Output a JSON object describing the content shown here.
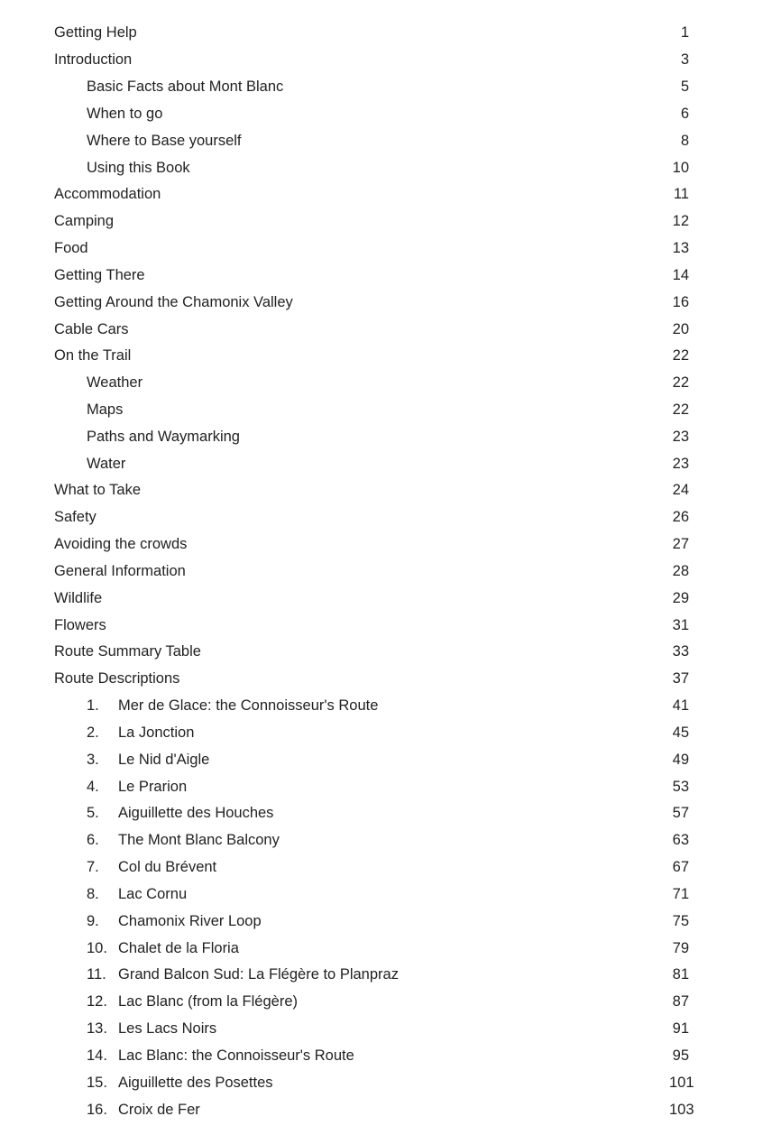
{
  "toc": [
    {
      "title": "Getting Help",
      "page": "1",
      "level": 0
    },
    {
      "title": "Introduction",
      "page": "3",
      "level": 0
    },
    {
      "title": "Basic Facts about Mont Blanc",
      "page": "5",
      "level": 1
    },
    {
      "title": "When to go",
      "page": "6",
      "level": 1
    },
    {
      "title": "Where to Base yourself",
      "page": "8",
      "level": 1
    },
    {
      "title": "Using this Book",
      "page": "10",
      "level": 1
    },
    {
      "title": "Accommodation",
      "page": "11",
      "level": 0
    },
    {
      "title": "Camping",
      "page": "12",
      "level": 0
    },
    {
      "title": "Food",
      "page": "13",
      "level": 0
    },
    {
      "title": "Getting There",
      "page": "14",
      "level": 0
    },
    {
      "title": "Getting Around the Chamonix Valley",
      "page": "16",
      "level": 0
    },
    {
      "title": "Cable Cars",
      "page": "20",
      "level": 0
    },
    {
      "title": "On the Trail",
      "page": "22",
      "level": 0
    },
    {
      "title": "Weather",
      "page": "22",
      "level": 1
    },
    {
      "title": "Maps",
      "page": "22",
      "level": 1
    },
    {
      "title": "Paths and Waymarking",
      "page": "23",
      "level": 1
    },
    {
      "title": "Water",
      "page": "23",
      "level": 1
    },
    {
      "title": "What to Take",
      "page": "24",
      "level": 0
    },
    {
      "title": "Safety",
      "page": "26",
      "level": 0
    },
    {
      "title": "Avoiding the crowds",
      "page": "27",
      "level": 0
    },
    {
      "title": "General Information",
      "page": "28",
      "level": 0
    },
    {
      "title": "Wildlife",
      "page": "29",
      "level": 0
    },
    {
      "title": "Flowers",
      "page": "31",
      "level": 0
    },
    {
      "title": "Route Summary Table",
      "page": "33",
      "level": 0
    },
    {
      "title": "Route Descriptions",
      "page": "37",
      "level": 0
    },
    {
      "num": "1.",
      "title": "Mer de Glace: the Connoisseur's Route",
      "page": "41",
      "level": 1
    },
    {
      "num": "2.",
      "title": "La Jonction",
      "page": "45",
      "level": 1
    },
    {
      "num": "3.",
      "title": "Le Nid d'Aigle",
      "page": "49",
      "level": 1
    },
    {
      "num": "4.",
      "title": "Le Prarion",
      "page": "53",
      "level": 1
    },
    {
      "num": "5.",
      "title": "Aiguillette des Houches",
      "page": "57",
      "level": 1
    },
    {
      "num": "6.",
      "title": "The Mont Blanc Balcony",
      "page": "63",
      "level": 1
    },
    {
      "num": "7.",
      "title": "Col du Brévent",
      "page": "67",
      "level": 1
    },
    {
      "num": "8.",
      "title": "Lac Cornu",
      "page": "71",
      "level": 1
    },
    {
      "num": "9.",
      "title": "Chamonix River Loop",
      "page": "75",
      "level": 1
    },
    {
      "num": "10.",
      "title": "Chalet de la Floria",
      "page": "79",
      "level": 1
    },
    {
      "num": "11.",
      "title": "Grand Balcon Sud: La Flégère to Planpraz",
      "page": "81",
      "level": 1
    },
    {
      "num": "12.",
      "title": "Lac Blanc (from la Flégère)",
      "page": "87",
      "level": 1
    },
    {
      "num": "13.",
      "title": "Les Lacs Noirs",
      "page": "91",
      "level": 1
    },
    {
      "num": "14.",
      "title": "Lac Blanc: the Connoisseur's Route",
      "page": "95",
      "level": 1
    },
    {
      "num": "15.",
      "title": "Aiguillette des Posettes",
      "page": "101",
      "level": 1
    },
    {
      "num": "16.",
      "title": "Croix de Fer",
      "page": "103",
      "level": 1
    }
  ]
}
